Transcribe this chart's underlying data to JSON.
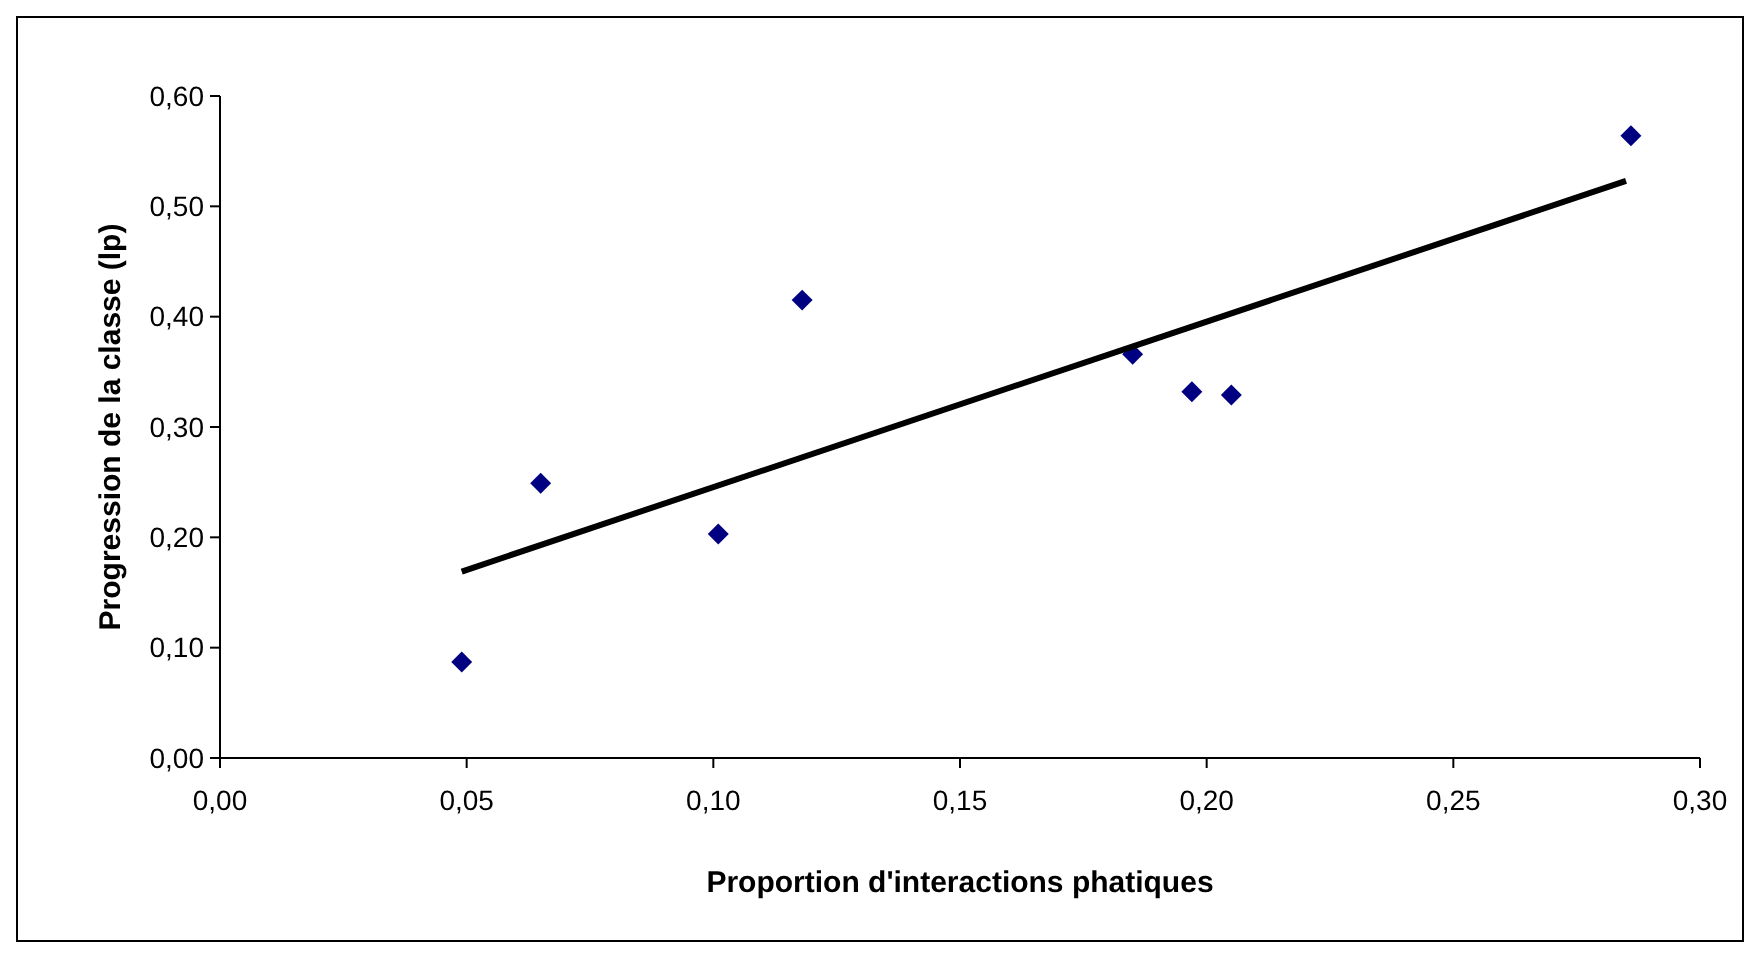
{
  "chart_data": {
    "type": "scatter",
    "xlabel": "Proportion d'interactions phatiques",
    "ylabel": "Progression de la classe (lp)",
    "grid": false,
    "xlim": [
      0,
      0.3
    ],
    "xticks": [
      {
        "value": 0,
        "label": "0,00"
      },
      {
        "value": 0.05,
        "label": "0,05"
      },
      {
        "value": 0.1,
        "label": "0,10"
      },
      {
        "value": 0.15,
        "label": "0,15"
      },
      {
        "value": 0.2,
        "label": "0,20"
      },
      {
        "value": 0.25,
        "label": "0,25"
      },
      {
        "value": 0.3,
        "label": "0,30"
      }
    ],
    "ylim": [
      0,
      0.6
    ],
    "yticks": [
      {
        "value": 0,
        "label": "0,00"
      },
      {
        "value": 0.1,
        "label": "0,10"
      },
      {
        "value": 0.2,
        "label": "0,20"
      },
      {
        "value": 0.3,
        "label": "0,30"
      },
      {
        "value": 0.4,
        "label": "0,40"
      },
      {
        "value": 0.5,
        "label": "0,50"
      },
      {
        "value": 0.6,
        "label": "0,60"
      }
    ],
    "series": [
      {
        "marker": "diamond",
        "color": "#000080",
        "x": [
          0.049,
          0.065,
          0.101,
          0.118,
          0.185,
          0.197,
          0.205,
          0.286
        ],
        "values": [
          0.087,
          0.249,
          0.203,
          0.415,
          0.366,
          0.332,
          0.329,
          0.564
        ]
      },
      {
        "type": "line",
        "color": "#000000",
        "x": [
          0.049,
          0.285
        ],
        "values": [
          0.169,
          0.523
        ]
      }
    ]
  }
}
